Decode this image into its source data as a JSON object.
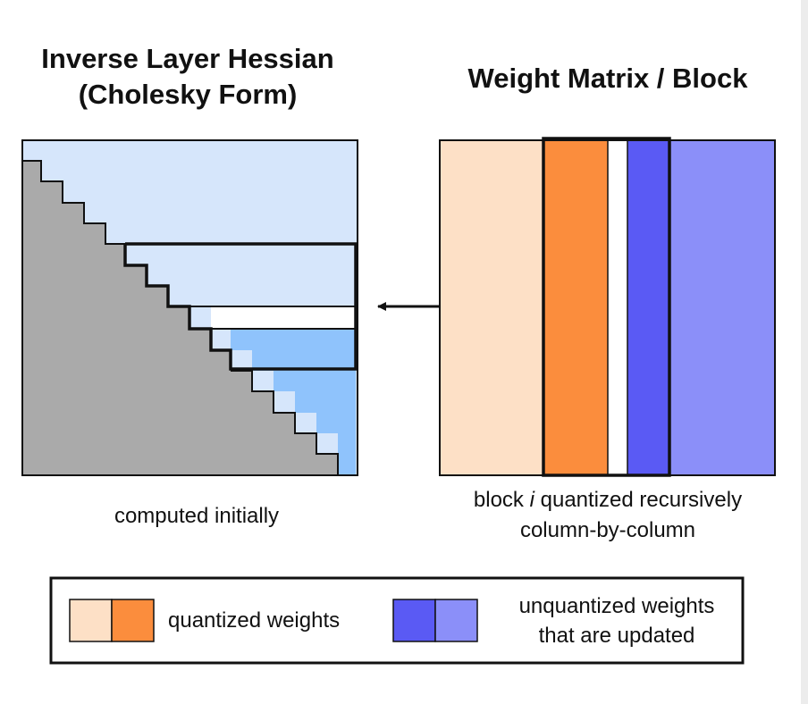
{
  "titles": {
    "hessian_line1": "Inverse Layer Hessian",
    "hessian_line2": "(Cholesky Form)",
    "weight": "Weight Matrix / Block"
  },
  "captions": {
    "hessian": "computed initially",
    "weight_prefix": "block ",
    "weight_italic": "i",
    "weight_suffix": " quantized recursively",
    "weight_line2": "column-by-column"
  },
  "legend": {
    "quantized": "quantized weights",
    "unquantized_line1": "unquantized weights",
    "unquantized_line2": "that are updated"
  },
  "colors": {
    "gray_triangle": "#aaaaaa",
    "light_blue": "#d6e6fb",
    "mid_blue": "#8fc3fc",
    "peach": "#fde0c6",
    "orange": "#fb8d3d",
    "blue": "#5a5af4",
    "periwinkle": "#8b8ff9"
  }
}
